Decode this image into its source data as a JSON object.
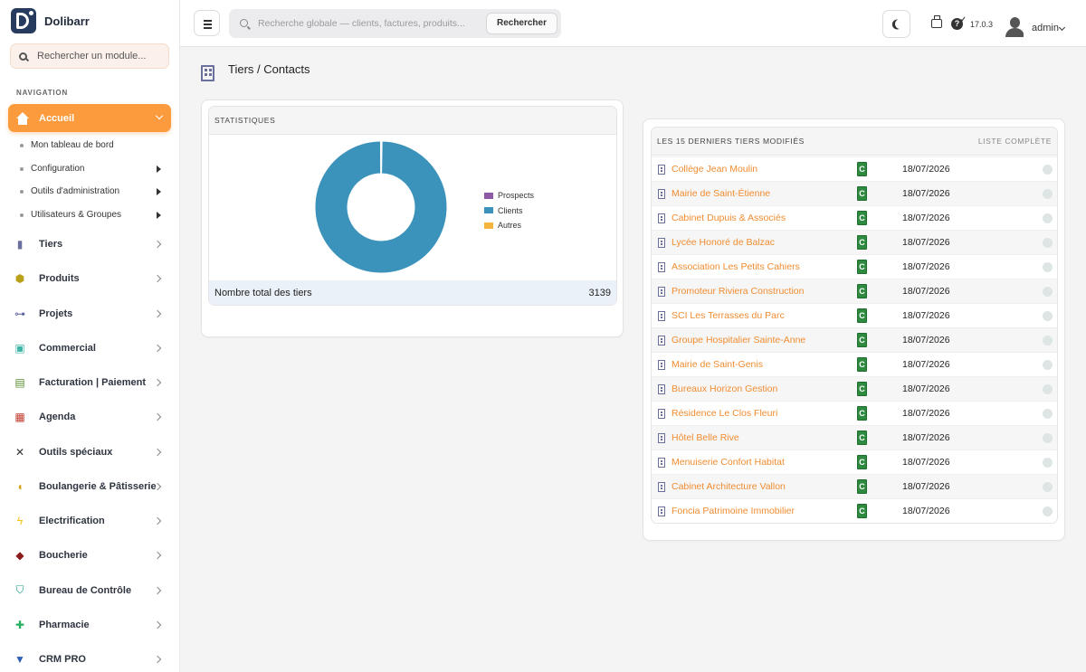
{
  "brand": {
    "name": "Dolibarr"
  },
  "sidebar": {
    "search_placeholder": "Rechercher un module...",
    "nav_title": "NAVIGATION",
    "active": {
      "label": "Accueil",
      "icon": "home-icon"
    },
    "subitems": [
      {
        "label": "Mon tableau de bord",
        "has_arrow": false
      },
      {
        "label": "Configuration",
        "has_arrow": true
      },
      {
        "label": "Outils d'administration",
        "has_arrow": true
      },
      {
        "label": "Utilisateurs & Groupes",
        "has_arrow": true
      }
    ],
    "items": [
      {
        "label": "Tiers",
        "icon": "building-icon",
        "color": "#6a6f9b"
      },
      {
        "label": "Produits",
        "icon": "cube-icon",
        "color": "#b8a21c"
      },
      {
        "label": "Projets",
        "icon": "sitemap-icon",
        "color": "#5b5f9a"
      },
      {
        "label": "Commercial",
        "icon": "suitcase-icon",
        "color": "#3fb5a8"
      },
      {
        "label": "Facturation | Paiement",
        "icon": "invoice-icon",
        "color": "#5a8f2e"
      },
      {
        "label": "Agenda",
        "icon": "calendar-icon",
        "color": "#c0392b"
      },
      {
        "label": "Outils spéciaux",
        "icon": "tools-icon",
        "color": "#333333"
      },
      {
        "label": "Boulangerie & Pâtisserie",
        "icon": "bread-icon",
        "color": "#d4a017"
      },
      {
        "label": "Electrification",
        "icon": "bolt-icon",
        "color": "#f1c40f"
      },
      {
        "label": "Boucherie",
        "icon": "meat-icon",
        "color": "#8b1a1a"
      },
      {
        "label": "Bureau de Contrôle",
        "icon": "shield-icon",
        "color": "#16a085"
      },
      {
        "label": "Pharmacie",
        "icon": "plus-icon",
        "color": "#27ae60"
      },
      {
        "label": "CRM PRO",
        "icon": "funnel-icon",
        "color": "#2f5fb3"
      }
    ]
  },
  "topbar": {
    "search_placeholder": "Recherche globale — clients, factures, produits...",
    "search_button": "Rechercher",
    "version": "17.0.3",
    "user": "admin"
  },
  "page": {
    "title": "Tiers / Contacts"
  },
  "stats": {
    "header": "STATISTIQUES",
    "total_label": "Nombre total des tiers",
    "total_value": "3139"
  },
  "chart_data": {
    "type": "pie",
    "categories": [
      "Prospects",
      "Clients",
      "Autres"
    ],
    "values": [
      8,
      3128,
      3
    ],
    "colors": [
      "#8e5aa6",
      "#3b93bb",
      "#f5b43c"
    ],
    "donut": true,
    "legend": "right"
  },
  "recent": {
    "header": "LES 15 DERNIERS TIERS MODIFIÉS",
    "link": "LISTE COMPLÈTE",
    "badge": "C",
    "rows": [
      {
        "name": "Collège Jean Moulin",
        "date": "18/07/2026"
      },
      {
        "name": "Mairie de Saint-Étienne",
        "date": "18/07/2026"
      },
      {
        "name": "Cabinet Dupuis & Associés",
        "date": "18/07/2026"
      },
      {
        "name": "Lycée Honoré de Balzac",
        "date": "18/07/2026"
      },
      {
        "name": "Association Les Petits Cahiers",
        "date": "18/07/2026"
      },
      {
        "name": "Promoteur Riviera Construction",
        "date": "18/07/2026"
      },
      {
        "name": "SCI Les Terrasses du Parc",
        "date": "18/07/2026"
      },
      {
        "name": "Groupe Hospitalier Sainte-Anne",
        "date": "18/07/2026"
      },
      {
        "name": "Mairie de Saint-Genis",
        "date": "18/07/2026"
      },
      {
        "name": "Bureaux Horizon Gestion",
        "date": "18/07/2026"
      },
      {
        "name": "Résidence Le Clos Fleuri",
        "date": "18/07/2026"
      },
      {
        "name": "Hôtel Belle Rive",
        "date": "18/07/2026"
      },
      {
        "name": "Menuiserie Confort Habitat",
        "date": "18/07/2026"
      },
      {
        "name": "Cabinet Architecture Vallon",
        "date": "18/07/2026"
      },
      {
        "name": "Foncia Patrimoine Immobilier",
        "date": "18/07/2026"
      }
    ]
  }
}
